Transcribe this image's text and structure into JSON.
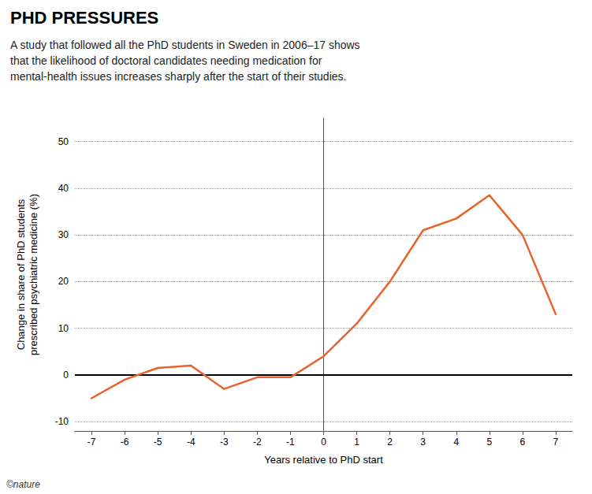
{
  "chart_data": {
    "type": "line",
    "title": "PHD PRESSURES",
    "subtitle": "A study that followed all the PhD students in Sweden in 2006–17 shows\nthat the likelihood of doctoral candidates needing medication for\nmental-health issues increases sharply after the start of their studies.",
    "annotations": [
      "©nature"
    ],
    "x": [
      -7,
      -6,
      -5,
      -4,
      -3,
      -2,
      -1,
      0,
      1,
      2,
      3,
      4,
      5,
      6,
      7
    ],
    "values": [
      -5.0,
      -1.0,
      1.5,
      2.0,
      -3.0,
      -0.5,
      -0.5,
      4.0,
      11.0,
      20.0,
      31.0,
      33.5,
      38.5,
      30.0,
      13.0
    ],
    "color": "#E8622A",
    "xlabel": "Years relative to PhD start",
    "ylabel": "Change in share of PhD students\nprescribed psychiatric medicine (%)",
    "xlim": [
      -7.5,
      7.5
    ],
    "xticks": [
      -7,
      -6,
      -5,
      -4,
      -3,
      -2,
      -1,
      0,
      1,
      2,
      3,
      4,
      5,
      6,
      7
    ],
    "ylim": [
      -12,
      55
    ],
    "yticks": [
      -10,
      0,
      10,
      20,
      30,
      40,
      50
    ],
    "reference_lines": [
      {
        "y": 0,
        "color": "#000000"
      }
    ],
    "grid": true
  }
}
